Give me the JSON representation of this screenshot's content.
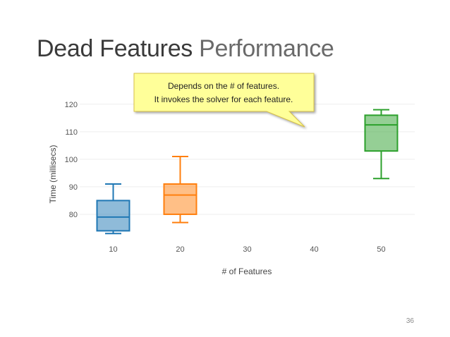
{
  "slide": {
    "title_part1": "Dead Features",
    "title_part2": "Performance",
    "page_number": "36"
  },
  "callout": {
    "line1": "Depends on the # of features.",
    "line2": "It invokes the solver for each feature.",
    "fill_color": "#ffff99",
    "border_color": "#d8c24a"
  },
  "chart_data": {
    "type": "box",
    "title": "",
    "xlabel": "# of Features",
    "ylabel": "Time (millisecs)",
    "xlim": [
      5,
      55
    ],
    "ylim": [
      70,
      122
    ],
    "x_ticks": [
      10,
      20,
      30,
      40,
      50
    ],
    "y_ticks": [
      80,
      90,
      100,
      110,
      120
    ],
    "grid": true,
    "legend": "none",
    "series": [
      {
        "x": 10,
        "min": 73,
        "q1": 74,
        "median": 79,
        "q3": 85,
        "max": 91,
        "color": "#1f77b4"
      },
      {
        "x": 20,
        "min": 77,
        "q1": 80,
        "median": 87,
        "q3": 91,
        "max": 101,
        "color": "#ff7f0e"
      },
      {
        "x": 50,
        "min": 93,
        "q1": 103,
        "median": 112.5,
        "q3": 116,
        "max": 118,
        "color": "#2ca02c"
      }
    ]
  }
}
